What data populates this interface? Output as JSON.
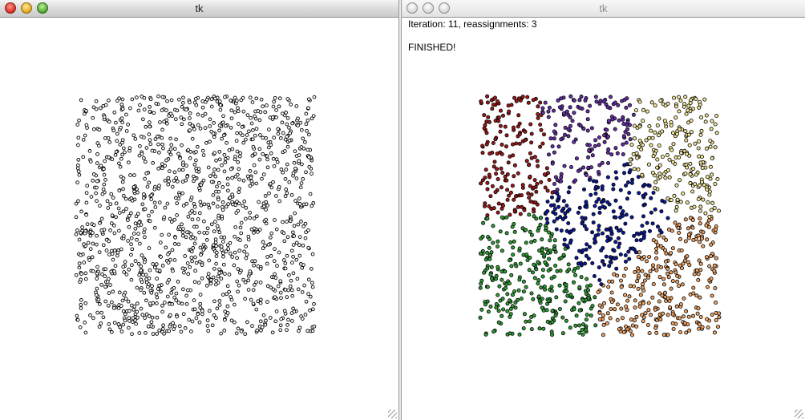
{
  "windows": {
    "left": {
      "title": "tk",
      "point_count": 1400,
      "point_fill": "#ffffff",
      "point_stroke": "#000000"
    },
    "right": {
      "title": "tk",
      "status_line": "Iteration: 11, reassignments: 3",
      "finished_text": "FINISHED!",
      "point_count": 1400,
      "point_stroke": "#000000",
      "cluster_colors": {
        "red": "#a01818",
        "purple": "#6a2fae",
        "yellow": "#f2e79a",
        "blue": "#0c1a9a",
        "green": "#2fa035",
        "orange": "#f0a465"
      }
    }
  }
}
